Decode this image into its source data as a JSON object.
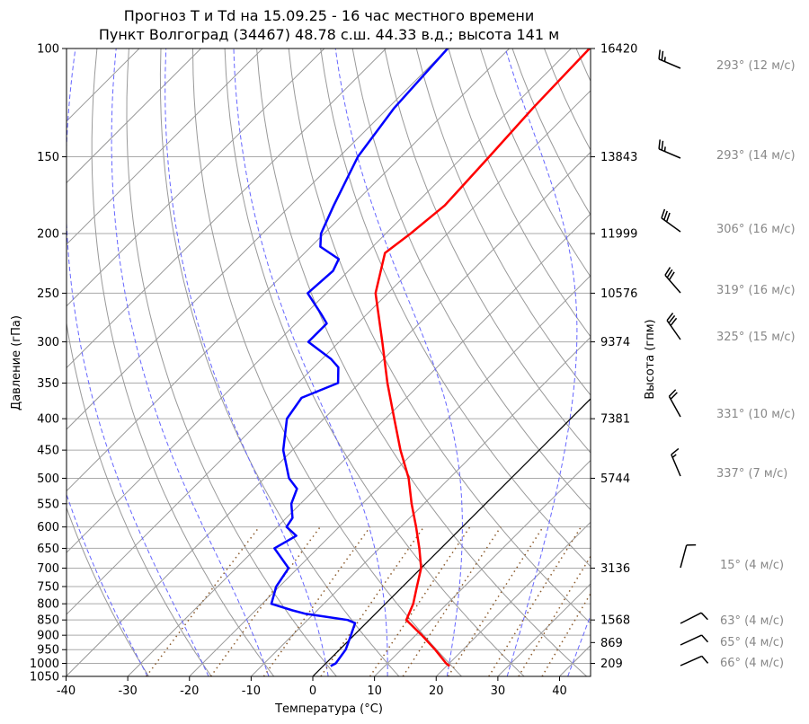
{
  "chart_data": {
    "type": "line",
    "title_line1": "Прогноз T и Td на 15.09.25 - 16 час местного времени",
    "title_line2": "Пункт Волгоград (34467) 48.78 с.ш. 44.33 в.д.; высота 141 м",
    "xlabel": "Температура (°C)",
    "ylabel": "Давление (гПа)",
    "ylabel_right": "Высота (гпм)",
    "xlim": [
      -40,
      45
    ],
    "ylim": [
      1050,
      100
    ],
    "y_scale": "log",
    "skewed": true,
    "x_ticks": [
      -40,
      -30,
      -20,
      -10,
      0,
      10,
      20,
      30,
      40
    ],
    "y_ticks": [
      100,
      150,
      200,
      250,
      300,
      350,
      400,
      450,
      500,
      550,
      600,
      650,
      700,
      750,
      800,
      850,
      900,
      950,
      1000,
      1050
    ],
    "height_ticks": [
      {
        "p": 100,
        "label": "16420"
      },
      {
        "p": 150,
        "label": "13843"
      },
      {
        "p": 200,
        "label": "11999"
      },
      {
        "p": 250,
        "label": "10576"
      },
      {
        "p": 300,
        "label": "9374"
      },
      {
        "p": 400,
        "label": "7381"
      },
      {
        "p": 500,
        "label": "5744"
      },
      {
        "p": 700,
        "label": "3136"
      },
      {
        "p": 850,
        "label": "1568"
      },
      {
        "p": 925,
        "label": "869"
      },
      {
        "p": 1000,
        "label": "209"
      }
    ],
    "series": [
      {
        "color": "#ff0000",
        "role": "temperature",
        "p": [
          1010,
          1000,
          950,
          900,
          850,
          800,
          750,
          700,
          650,
          600,
          550,
          500,
          450,
          400,
          350,
          300,
          250,
          225,
          215,
          200,
          180,
          150,
          125,
          100
        ],
        "t": [
          20.5,
          19.5,
          15.5,
          11,
          6,
          4.5,
          2.3,
          0,
          -3.5,
          -7.5,
          -12,
          -16.6,
          -22.5,
          -28.6,
          -35.5,
          -43,
          -52,
          -55.5,
          -57,
          -56,
          -55,
          -55.7,
          -56.5,
          -57
        ]
      },
      {
        "color": "#0000ff",
        "role": "dewpoint",
        "p": [
          1010,
          1000,
          950,
          900,
          860,
          850,
          830,
          820,
          800,
          750,
          700,
          650,
          620,
          600,
          580,
          550,
          520,
          500,
          450,
          400,
          370,
          350,
          330,
          320,
          300,
          280,
          270,
          250,
          230,
          220,
          210,
          200,
          180,
          150,
          125,
          100
        ],
        "t": [
          1.2,
          1.6,
          1.0,
          -0.5,
          -1.8,
          -3.5,
          -11.5,
          -14,
          -18.5,
          -20.5,
          -21.5,
          -27,
          -25.5,
          -28.5,
          -29,
          -31.5,
          -33,
          -36,
          -41.5,
          -46,
          -47,
          -43.5,
          -46,
          -48.5,
          -55,
          -55,
          -57.5,
          -63,
          -62.5,
          -63.5,
          -68.5,
          -70.5,
          -73,
          -77,
          -79,
          -80
        ]
      }
    ],
    "reference_line_isotherm_c": 0,
    "winds": [
      {
        "p": 100,
        "dir": 293,
        "speed": 12,
        "label": "293° (12 м/с)"
      },
      {
        "p": 150,
        "dir": 293,
        "speed": 14,
        "label": "293° (14 м/с)"
      },
      {
        "p": 200,
        "dir": 306,
        "speed": 16,
        "label": "306° (16 м/с)"
      },
      {
        "p": 250,
        "dir": 319,
        "speed": 16,
        "label": "319° (16 м/с)"
      },
      {
        "p": 300,
        "dir": 325,
        "speed": 15,
        "label": "325° (15 м/с)"
      },
      {
        "p": 400,
        "dir": 331,
        "speed": 10,
        "label": "331° (10 м/с)"
      },
      {
        "p": 500,
        "dir": 337,
        "speed": 7,
        "label": "337° (7 м/с)"
      },
      {
        "p": 700,
        "dir": 15,
        "speed": 4,
        "label": "15° (4 м/с)"
      },
      {
        "p": 850,
        "dir": 63,
        "speed": 4,
        "label": "63° (4 м/с)"
      },
      {
        "p": 925,
        "dir": 65,
        "speed": 4,
        "label": "65° (4 м/с)"
      },
      {
        "p": 1000,
        "dir": 66,
        "speed": 4,
        "label": "66° (4 м/с)"
      }
    ],
    "colors": {
      "dry_adiabat": "#999999",
      "moist_adiabat": "#6666ff",
      "mixing_ratio": "#8b5a2b",
      "isotherm": "#999999"
    }
  }
}
